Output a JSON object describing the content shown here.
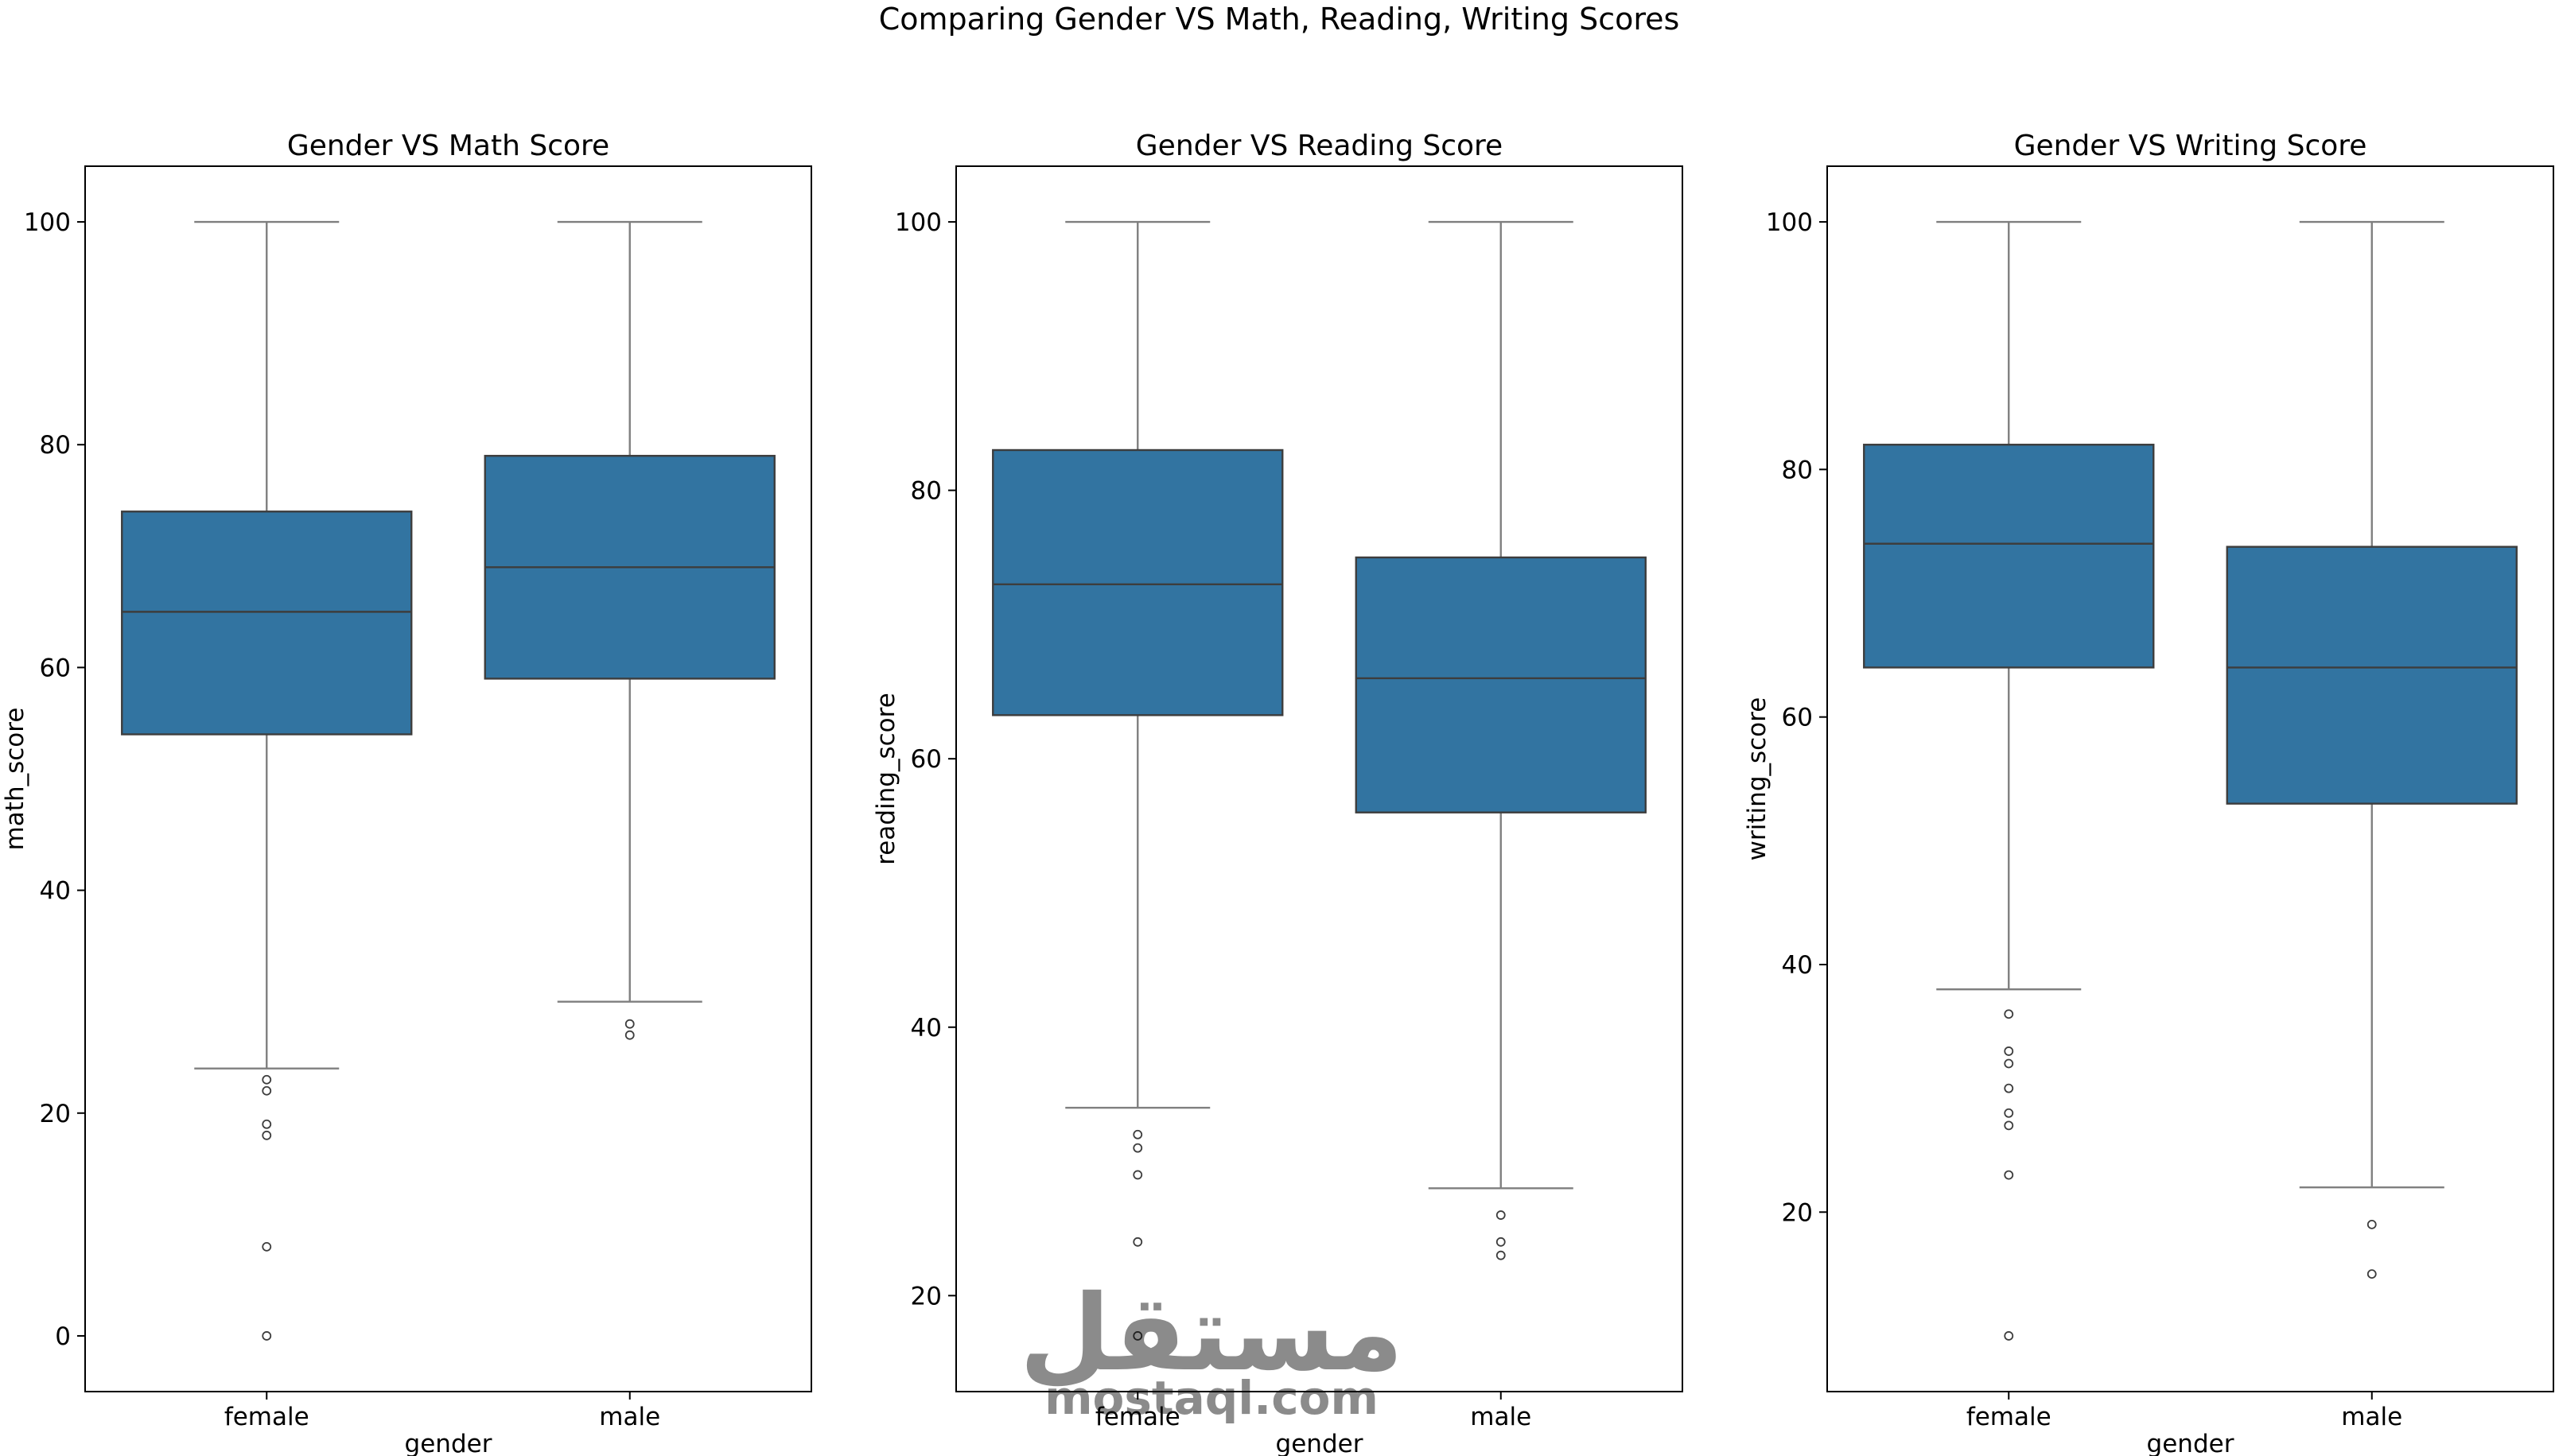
{
  "figure": {
    "suptitle": "Comparing Gender VS Math, Reading, Writing Scores",
    "watermark": {
      "logo_text": "مستقل",
      "site_text": "mostaql.com"
    }
  },
  "style": {
    "box_color": "#3274a1",
    "line_color": "#3d3d3d",
    "whisker_color": "#7f7f7f"
  },
  "chart_data": [
    {
      "type": "box",
      "title": "Gender VS Math Score",
      "xlabel": "gender",
      "ylabel": "math_score",
      "categories": [
        "female",
        "male"
      ],
      "ylim": [
        -5,
        105
      ],
      "yticks": [
        0,
        20,
        40,
        60,
        80,
        100
      ],
      "boxes": [
        {
          "category": "female",
          "whisker_low": 24,
          "q1": 54,
          "median": 65,
          "q3": 74,
          "whisker_high": 100,
          "outliers": [
            23,
            22,
            19,
            18,
            8,
            0
          ]
        },
        {
          "category": "male",
          "whisker_low": 30,
          "q1": 59,
          "median": 69,
          "q3": 79,
          "whisker_high": 100,
          "outliers": [
            28,
            27
          ]
        }
      ]
    },
    {
      "type": "box",
      "title": "Gender VS Reading Score",
      "xlabel": "gender",
      "ylabel": "reading_score",
      "categories": [
        "female",
        "male"
      ],
      "ylim": [
        12.85,
        104.15
      ],
      "yticks": [
        20,
        40,
        60,
        80,
        100
      ],
      "boxes": [
        {
          "category": "female",
          "whisker_low": 34,
          "q1": 63.25,
          "median": 73,
          "q3": 83,
          "whisker_high": 100,
          "outliers": [
            32,
            31,
            29,
            24,
            17
          ]
        },
        {
          "category": "male",
          "whisker_low": 28,
          "q1": 56,
          "median": 66,
          "q3": 75,
          "whisker_high": 100,
          "outliers": [
            26,
            24,
            23
          ]
        }
      ]
    },
    {
      "type": "box",
      "title": "Gender VS Writing Score",
      "xlabel": "gender",
      "ylabel": "writing_score",
      "categories": [
        "female",
        "male"
      ],
      "ylim": [
        5.5,
        104.5
      ],
      "yticks": [
        20,
        40,
        60,
        80,
        100
      ],
      "boxes": [
        {
          "category": "female",
          "whisker_low": 38,
          "q1": 64,
          "median": 74,
          "q3": 82,
          "whisker_high": 100,
          "outliers": [
            36,
            33,
            32,
            30,
            28,
            27,
            23,
            10
          ]
        },
        {
          "category": "male",
          "whisker_low": 22,
          "q1": 53,
          "median": 64,
          "q3": 73.75,
          "whisker_high": 100,
          "outliers": [
            19,
            15
          ]
        }
      ]
    }
  ]
}
